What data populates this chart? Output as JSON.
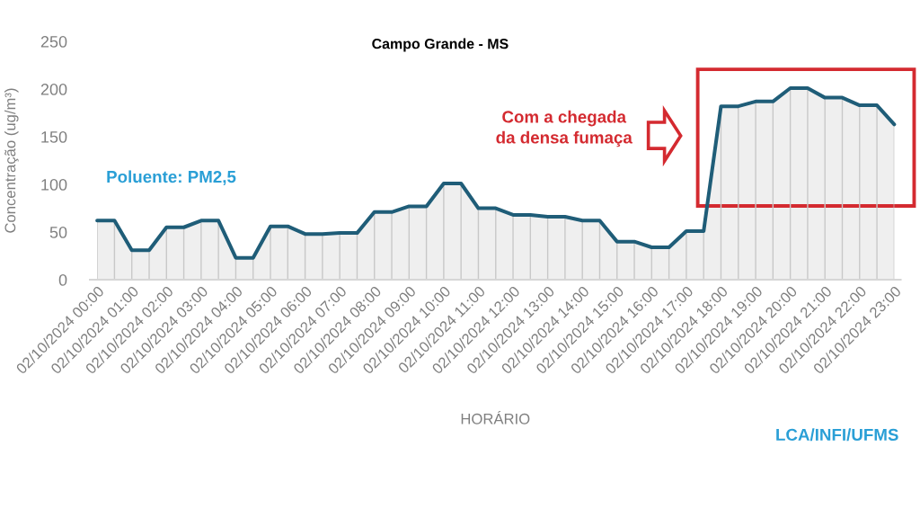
{
  "chart_data": {
    "type": "area",
    "title": "Campo Grande - MS",
    "xlabel": "HORÁRIO",
    "ylabel": "Concentração (ug/m³)",
    "categories": [
      "02/10/2024 00:00",
      null,
      "02/10/2024 01:00",
      null,
      "02/10/2024 02:00",
      null,
      "02/10/2024 03:00",
      null,
      "02/10/2024 04:00",
      null,
      "02/10/2024 05:00",
      null,
      "02/10/2024 06:00",
      null,
      "02/10/2024 07:00",
      null,
      "02/10/2024 08:00",
      null,
      "02/10/2024 09:00",
      null,
      "02/10/2024 10:00",
      null,
      "02/10/2024 11:00",
      null,
      "02/10/2024 12:00",
      null,
      "02/10/2024 13:00",
      null,
      "02/10/2024 14:00",
      null,
      "02/10/2024 15:00",
      null,
      "02/10/2024 16:00",
      null,
      "02/10/2024 17:00",
      null,
      "02/10/2024 18:00",
      null,
      "02/10/2024 19:00",
      null,
      "02/10/2024 20:00",
      null,
      "02/10/2024 21:00",
      null,
      "02/10/2024 22:00",
      null,
      "02/10/2024 23:00"
    ],
    "series": [
      {
        "color": "#1f5d78",
        "values": [
          62,
          62,
          31,
          31,
          55,
          55,
          62,
          62,
          23,
          23,
          56,
          56,
          48,
          48,
          49,
          49,
          71,
          71,
          77,
          77,
          101,
          101,
          75,
          75,
          68,
          68,
          66,
          66,
          62,
          62,
          40,
          40,
          34,
          34,
          51,
          51,
          182,
          182,
          187,
          187,
          201,
          201,
          191,
          191,
          183,
          183,
          163
        ]
      }
    ],
    "ylim": [
      0,
      250
    ],
    "yticks": [
      0,
      50,
      100,
      150,
      200,
      250
    ],
    "grid": "x",
    "annotations": [
      "Poluente: PM2,5",
      "Com a chegada\nda densa fumaça",
      "LCA/INFI/UFMS"
    ]
  }
}
